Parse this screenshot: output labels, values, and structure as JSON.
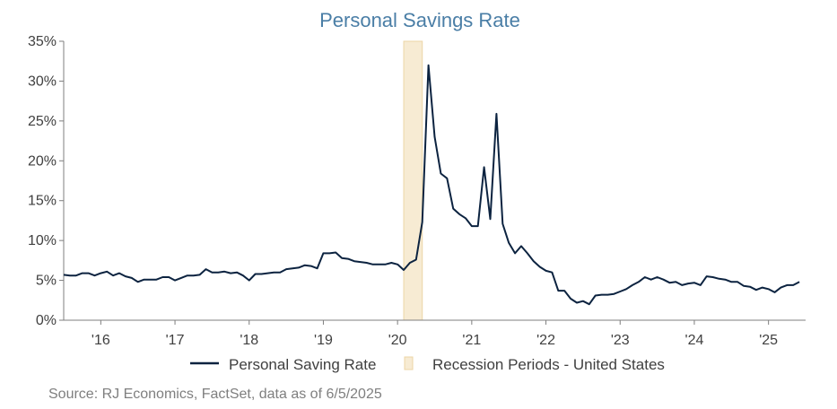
{
  "chart_data": {
    "type": "line",
    "title": "Personal Savings Rate",
    "x_range": [
      "2015-07",
      "2025-07"
    ],
    "ylim": [
      0,
      35
    ],
    "y_ticks": [
      0,
      5,
      10,
      15,
      20,
      25,
      30,
      35
    ],
    "y_tick_labels": [
      "0%",
      "5%",
      "10%",
      "15%",
      "20%",
      "25%",
      "30%",
      "35%"
    ],
    "x_ticks": [
      "2016-01",
      "2017-01",
      "2018-01",
      "2019-01",
      "2020-01",
      "2021-01",
      "2022-01",
      "2023-01",
      "2024-01",
      "2025-01"
    ],
    "x_tick_labels": [
      "'16",
      "'17",
      "'18",
      "'19",
      "'20",
      "'21",
      "'22",
      "'23",
      "'24",
      "'25"
    ],
    "grid": false,
    "legend_position": "bottom",
    "series": [
      {
        "name": "Personal Saving Rate",
        "color": "#0c2340",
        "points": [
          [
            "2015-07",
            5.7
          ],
          [
            "2015-08",
            5.6
          ],
          [
            "2015-09",
            5.6
          ],
          [
            "2015-10",
            5.9
          ],
          [
            "2015-11",
            5.9
          ],
          [
            "2015-12",
            5.6
          ],
          [
            "2016-01",
            5.9
          ],
          [
            "2016-02",
            6.1
          ],
          [
            "2016-03",
            5.6
          ],
          [
            "2016-04",
            5.9
          ],
          [
            "2016-05",
            5.5
          ],
          [
            "2016-06",
            5.3
          ],
          [
            "2016-07",
            4.8
          ],
          [
            "2016-08",
            5.1
          ],
          [
            "2016-09",
            5.1
          ],
          [
            "2016-10",
            5.1
          ],
          [
            "2016-11",
            5.4
          ],
          [
            "2016-12",
            5.4
          ],
          [
            "2017-01",
            5.0
          ],
          [
            "2017-02",
            5.3
          ],
          [
            "2017-03",
            5.6
          ],
          [
            "2017-04",
            5.6
          ],
          [
            "2017-05",
            5.7
          ],
          [
            "2017-06",
            6.4
          ],
          [
            "2017-07",
            6.0
          ],
          [
            "2017-08",
            6.0
          ],
          [
            "2017-09",
            6.1
          ],
          [
            "2017-10",
            5.9
          ],
          [
            "2017-11",
            6.0
          ],
          [
            "2017-12",
            5.6
          ],
          [
            "2018-01",
            5.0
          ],
          [
            "2018-02",
            5.8
          ],
          [
            "2018-03",
            5.8
          ],
          [
            "2018-04",
            5.9
          ],
          [
            "2018-05",
            6.0
          ],
          [
            "2018-06",
            6.0
          ],
          [
            "2018-07",
            6.4
          ],
          [
            "2018-08",
            6.5
          ],
          [
            "2018-09",
            6.6
          ],
          [
            "2018-10",
            6.9
          ],
          [
            "2018-11",
            6.8
          ],
          [
            "2018-12",
            6.5
          ],
          [
            "2019-01",
            8.4
          ],
          [
            "2019-02",
            8.4
          ],
          [
            "2019-03",
            8.5
          ],
          [
            "2019-04",
            7.8
          ],
          [
            "2019-05",
            7.7
          ],
          [
            "2019-06",
            7.4
          ],
          [
            "2019-07",
            7.3
          ],
          [
            "2019-08",
            7.2
          ],
          [
            "2019-09",
            7.0
          ],
          [
            "2019-10",
            7.0
          ],
          [
            "2019-11",
            7.0
          ],
          [
            "2019-12",
            7.2
          ],
          [
            "2020-01",
            7.0
          ],
          [
            "2020-02",
            6.3
          ],
          [
            "2020-03",
            7.2
          ],
          [
            "2020-04",
            7.6
          ],
          [
            "2020-05",
            12.3
          ],
          [
            "2020-06",
            32.0
          ],
          [
            "2020-07",
            23.0
          ],
          [
            "2020-08",
            18.4
          ],
          [
            "2020-09",
            17.8
          ],
          [
            "2020-10",
            14.0
          ],
          [
            "2020-11",
            13.3
          ],
          [
            "2020-12",
            12.8
          ],
          [
            "2021-01",
            11.8
          ],
          [
            "2021-02",
            11.8
          ],
          [
            "2021-03",
            19.2
          ],
          [
            "2021-04",
            12.7
          ],
          [
            "2021-05",
            25.9
          ],
          [
            "2021-06",
            12.1
          ],
          [
            "2021-07",
            9.7
          ],
          [
            "2021-08",
            8.4
          ],
          [
            "2021-09",
            9.3
          ],
          [
            "2021-10",
            8.4
          ],
          [
            "2021-11",
            7.4
          ],
          [
            "2021-12",
            6.7
          ],
          [
            "2022-01",
            6.2
          ],
          [
            "2022-02",
            6.0
          ],
          [
            "2022-03",
            3.7
          ],
          [
            "2022-04",
            3.7
          ],
          [
            "2022-05",
            2.7
          ],
          [
            "2022-06",
            2.2
          ],
          [
            "2022-07",
            2.4
          ],
          [
            "2022-08",
            2.0
          ],
          [
            "2022-09",
            3.1
          ],
          [
            "2022-10",
            3.2
          ],
          [
            "2022-11",
            3.2
          ],
          [
            "2022-12",
            3.3
          ],
          [
            "2023-01",
            3.6
          ],
          [
            "2023-02",
            3.9
          ],
          [
            "2023-03",
            4.4
          ],
          [
            "2023-04",
            4.8
          ],
          [
            "2023-05",
            5.4
          ],
          [
            "2023-06",
            5.1
          ],
          [
            "2023-07",
            5.4
          ],
          [
            "2023-08",
            5.1
          ],
          [
            "2023-09",
            4.7
          ],
          [
            "2023-10",
            4.8
          ],
          [
            "2023-11",
            4.4
          ],
          [
            "2023-12",
            4.6
          ],
          [
            "2024-01",
            4.7
          ],
          [
            "2024-02",
            4.4
          ],
          [
            "2024-03",
            5.5
          ],
          [
            "2024-04",
            5.4
          ],
          [
            "2024-05",
            5.2
          ],
          [
            "2024-06",
            5.1
          ],
          [
            "2024-07",
            4.8
          ],
          [
            "2024-08",
            4.8
          ],
          [
            "2024-09",
            4.3
          ],
          [
            "2024-10",
            4.2
          ],
          [
            "2024-11",
            3.8
          ],
          [
            "2024-12",
            4.1
          ],
          [
            "2025-01",
            3.9
          ],
          [
            "2025-02",
            3.5
          ],
          [
            "2025-03",
            4.1
          ],
          [
            "2025-04",
            4.4
          ],
          [
            "2025-05",
            4.4
          ],
          [
            "2025-06",
            4.8
          ]
        ]
      }
    ],
    "recession_periods": {
      "name": "Recession Periods - United States",
      "color": "#f7ebd3",
      "border_color": "#ecd6a6",
      "ranges": [
        [
          "2020-02",
          "2020-05"
        ]
      ]
    },
    "source": "Source: RJ Economics, FactSet, data as of 6/5/2025",
    "title_color": "#4a7ea6",
    "axis_color": "#7f7f7f"
  }
}
